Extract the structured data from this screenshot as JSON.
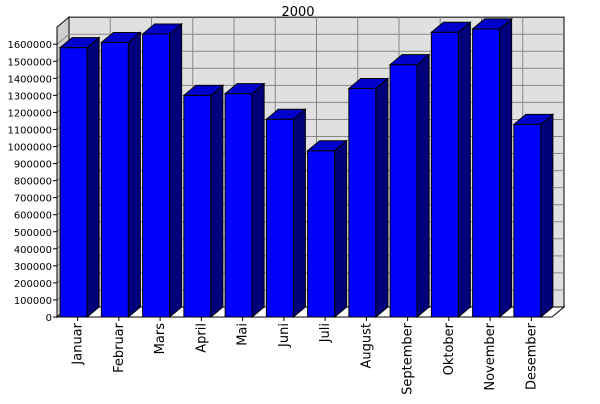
{
  "chart_data": {
    "type": "bar",
    "title": "2000",
    "categories": [
      "Januar",
      "Februar",
      "Mars",
      "April",
      "Mai",
      "Juni",
      "Juli",
      "August",
      "September",
      "Oktober",
      "November",
      "Desember"
    ],
    "values": [
      1580000,
      1610000,
      1660000,
      1300000,
      1310000,
      1160000,
      975000,
      1340000,
      1480000,
      1670000,
      1690000,
      1130000
    ],
    "ylim": [
      0,
      1700000
    ],
    "ytick_step": 100000,
    "yticks": [
      "0",
      "100000",
      "200000",
      "300000",
      "400000",
      "500000",
      "600000",
      "700000",
      "800000",
      "900000",
      "1000000",
      "1100000",
      "1200000",
      "1300000",
      "1400000",
      "1500000",
      "1600000"
    ],
    "grid": true,
    "style": "3d-bar",
    "colors": {
      "bar_front": "#0000ff",
      "bar_side": "#00007a",
      "bar_top": "#0000cc",
      "plot_back": "#e0e0e0",
      "plot_floor": "#ffffff",
      "grid": "#888888"
    }
  }
}
